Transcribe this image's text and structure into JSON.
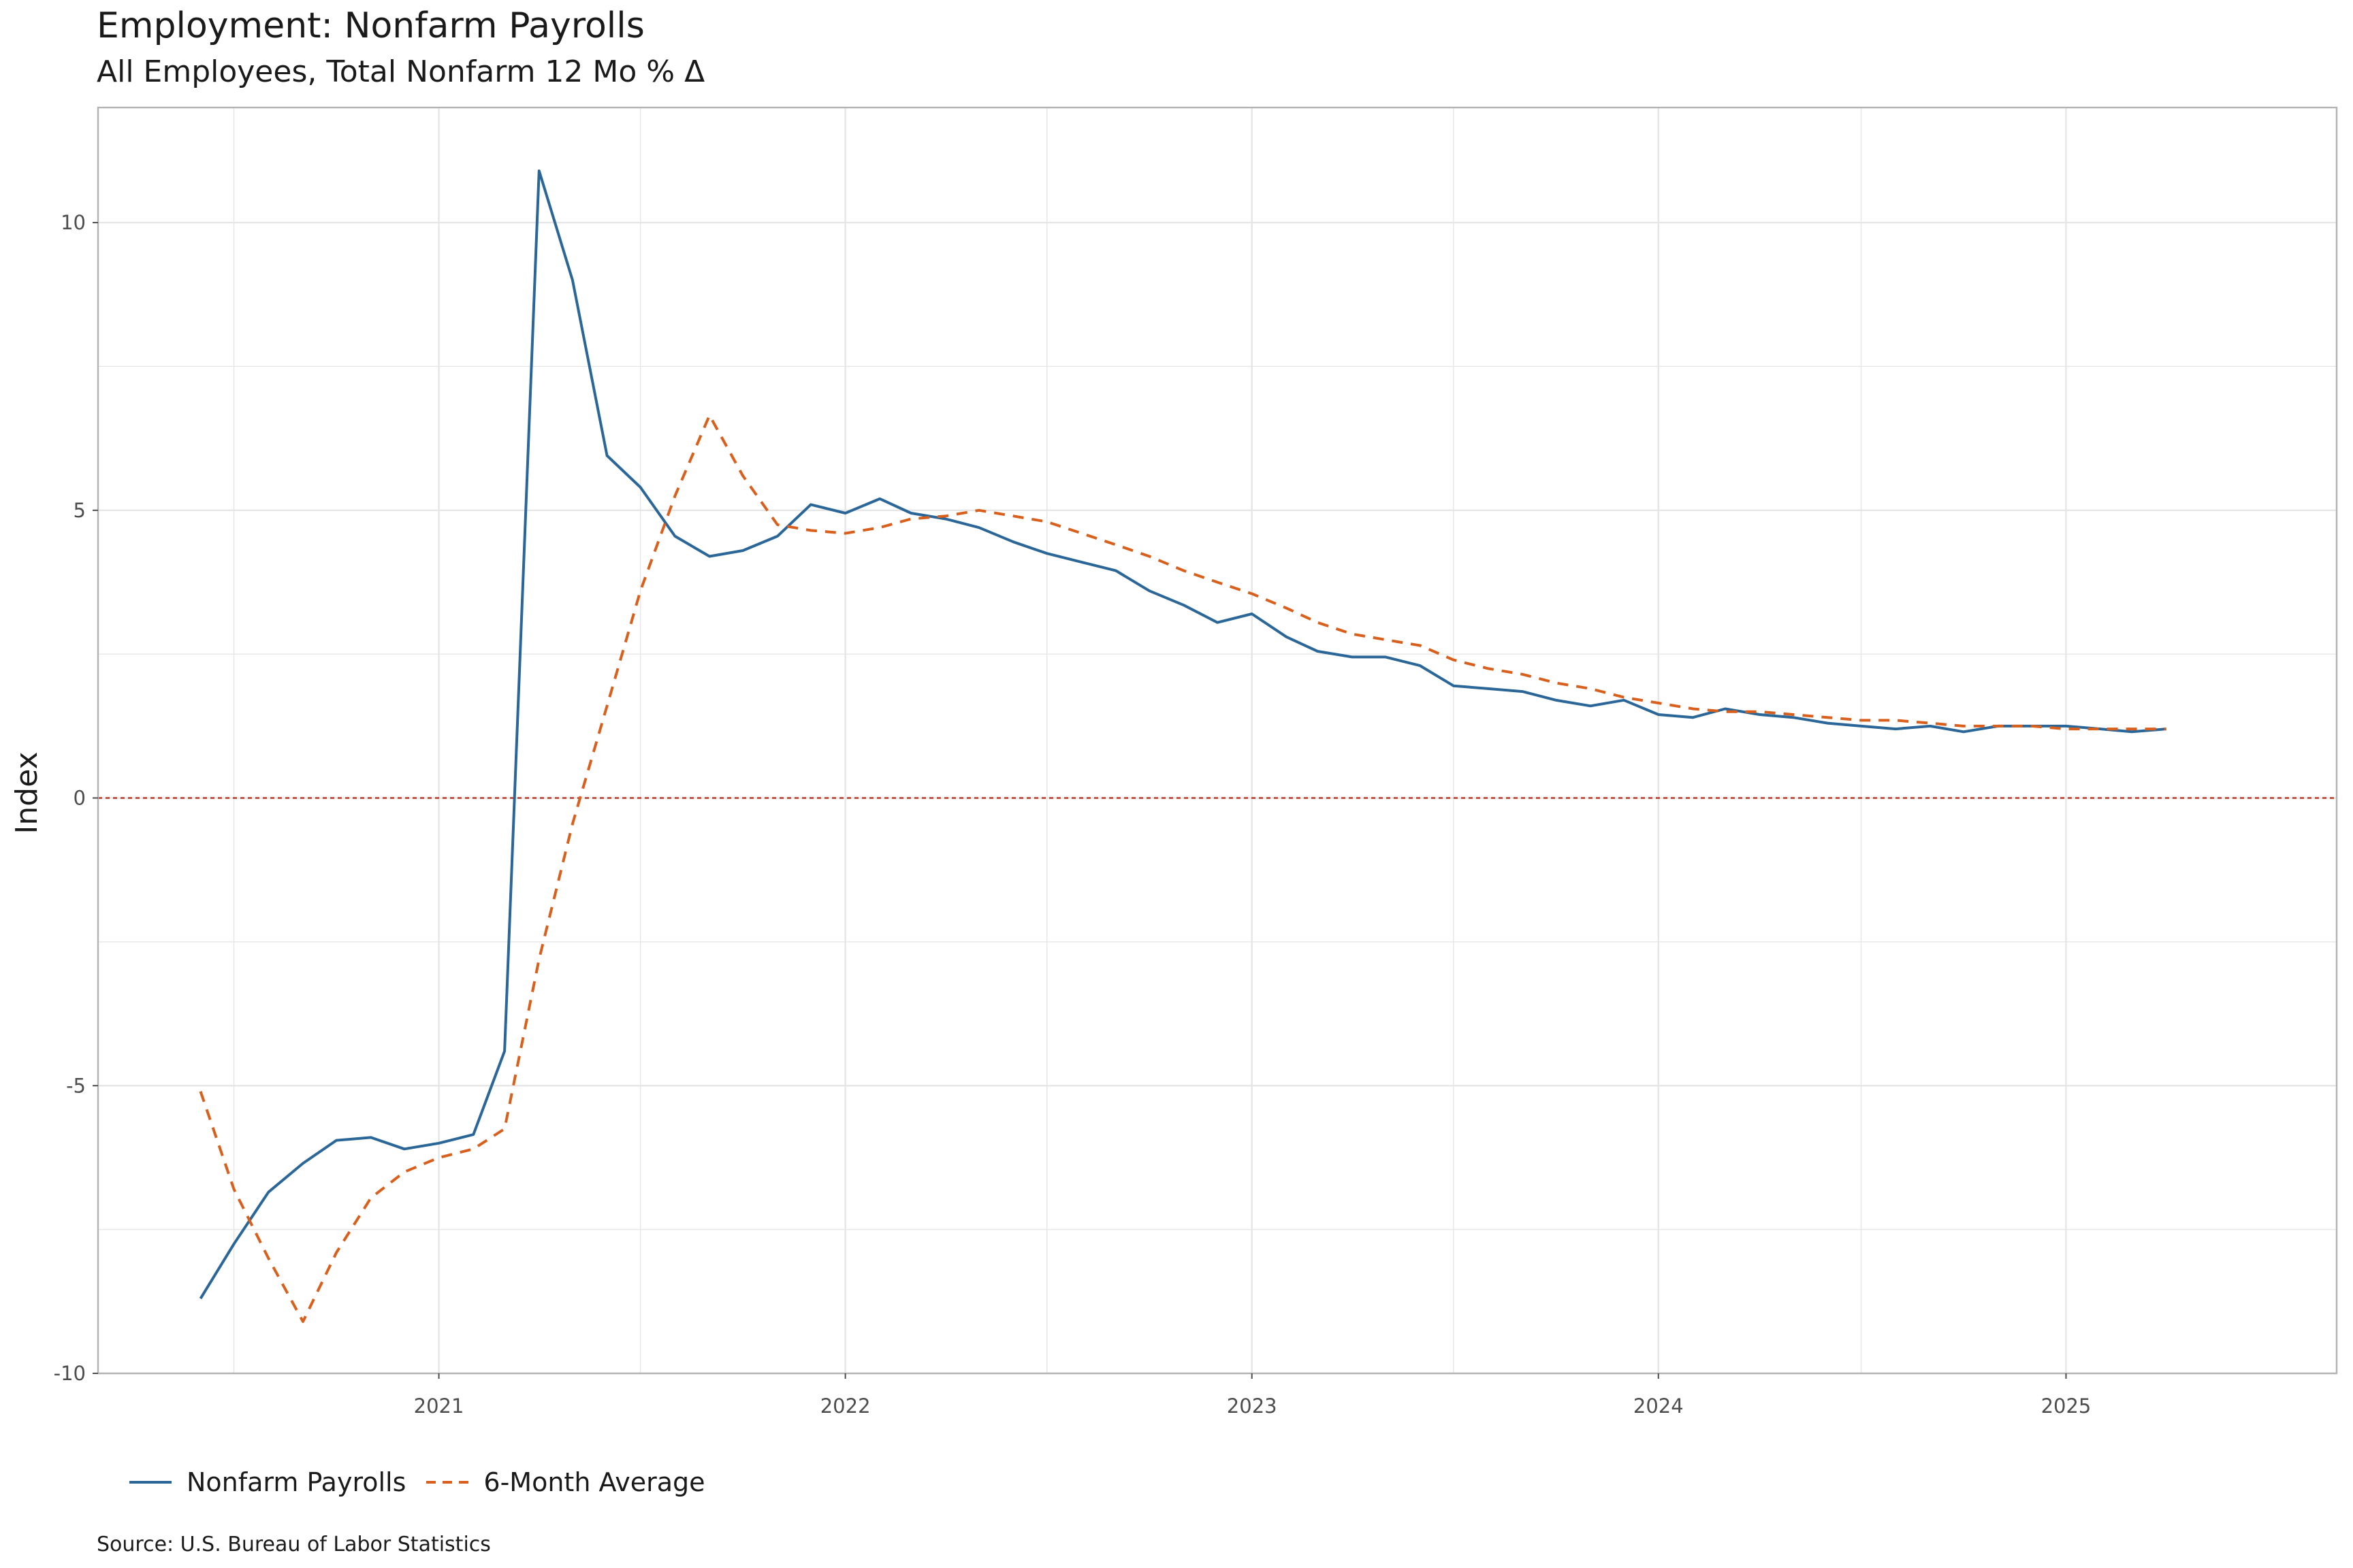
{
  "title": "Employment: Nonfarm Payrolls",
  "subtitle": "All Employees, Total Nonfarm 12 Mo % Δ",
  "source": "Source:  U.S. Bureau of Labor Statistics",
  "colors": {
    "payrolls": "#2a6698",
    "average": "#d95f1c",
    "zero_line": "#b5301c",
    "grid": "#e6e6e6",
    "panel_border": "#b3b3b3"
  },
  "chart_data": {
    "type": "line",
    "title": "Employment: Nonfarm Payrolls",
    "subtitle": "All Employees, Total Nonfarm 12 Mo % Δ",
    "xlabel": "",
    "ylabel": "Index",
    "ylim": [
      -10,
      12
    ],
    "xlim": [
      "2020-03-01",
      "2025-09-01"
    ],
    "x_ticks": [
      {
        "date": "2021-01-01",
        "label": "2021"
      },
      {
        "date": "2022-01-01",
        "label": "2022"
      },
      {
        "date": "2023-01-01",
        "label": "2023"
      },
      {
        "date": "2024-01-01",
        "label": "2024"
      },
      {
        "date": "2025-01-01",
        "label": "2025"
      }
    ],
    "y_ticks": [
      {
        "value": 10,
        "label": "10"
      },
      {
        "value": 5,
        "label": "5"
      },
      {
        "value": 0,
        "label": "0"
      },
      {
        "value": -5,
        "label": "-5"
      },
      {
        "value": -10,
        "label": "-10"
      }
    ],
    "reference_line": {
      "y": 0,
      "style": "dashed"
    },
    "grid": true,
    "legend_position": "bottom",
    "x": [
      "2020-06-01",
      "2020-07-01",
      "2020-08-01",
      "2020-09-01",
      "2020-10-01",
      "2020-11-01",
      "2020-12-01",
      "2021-01-01",
      "2021-02-01",
      "2021-03-01",
      "2021-04-01",
      "2021-05-01",
      "2021-06-01",
      "2021-07-01",
      "2021-08-01",
      "2021-09-01",
      "2021-10-01",
      "2021-11-01",
      "2021-12-01",
      "2022-01-01",
      "2022-02-01",
      "2022-03-01",
      "2022-04-01",
      "2022-05-01",
      "2022-06-01",
      "2022-07-01",
      "2022-08-01",
      "2022-09-01",
      "2022-10-01",
      "2022-11-01",
      "2022-12-01",
      "2023-01-01",
      "2023-02-01",
      "2023-03-01",
      "2023-04-01",
      "2023-05-01",
      "2023-06-01",
      "2023-07-01",
      "2023-08-01",
      "2023-09-01",
      "2023-10-01",
      "2023-11-01",
      "2023-12-01",
      "2024-01-01",
      "2024-02-01",
      "2024-03-01",
      "2024-04-01",
      "2024-05-01",
      "2024-06-01",
      "2024-07-01",
      "2024-08-01",
      "2024-09-01",
      "2024-10-01",
      "2024-11-01",
      "2024-12-01",
      "2025-01-01",
      "2025-02-01",
      "2025-03-01",
      "2025-04-01"
    ],
    "series": [
      {
        "name": "Nonfarm Payrolls",
        "style": "solid",
        "values": [
          -8.7,
          -7.75,
          -6.85,
          -6.35,
          -5.95,
          -5.9,
          -6.1,
          -6.0,
          -5.85,
          -4.4,
          10.9,
          9.0,
          5.95,
          5.4,
          4.55,
          4.2,
          4.3,
          4.55,
          5.1,
          4.95,
          5.2,
          4.95,
          4.85,
          4.7,
          4.45,
          4.25,
          4.1,
          3.95,
          3.6,
          3.35,
          3.05,
          3.2,
          2.8,
          2.55,
          2.45,
          2.45,
          2.3,
          1.95,
          1.9,
          1.85,
          1.7,
          1.6,
          1.7,
          1.45,
          1.4,
          1.55,
          1.45,
          1.4,
          1.3,
          1.25,
          1.2,
          1.25,
          1.15,
          1.25,
          1.25,
          1.25,
          1.2,
          1.15,
          1.2
        ]
      },
      {
        "name": "6-Month Average",
        "style": "dashed",
        "values": [
          -5.1,
          -6.8,
          -8.0,
          -9.1,
          -7.9,
          -6.95,
          -6.5,
          -6.25,
          -6.1,
          -5.75,
          -2.8,
          -0.45,
          1.6,
          3.6,
          5.25,
          6.65,
          5.6,
          4.75,
          4.65,
          4.6,
          4.7,
          4.85,
          4.9,
          5.0,
          4.9,
          4.8,
          4.6,
          4.4,
          4.2,
          3.95,
          3.75,
          3.55,
          3.3,
          3.05,
          2.85,
          2.75,
          2.65,
          2.4,
          2.25,
          2.15,
          2.0,
          1.9,
          1.75,
          1.65,
          1.55,
          1.5,
          1.5,
          1.45,
          1.4,
          1.35,
          1.35,
          1.3,
          1.25,
          1.25,
          1.25,
          1.2,
          1.2,
          1.2,
          1.2
        ]
      }
    ]
  }
}
